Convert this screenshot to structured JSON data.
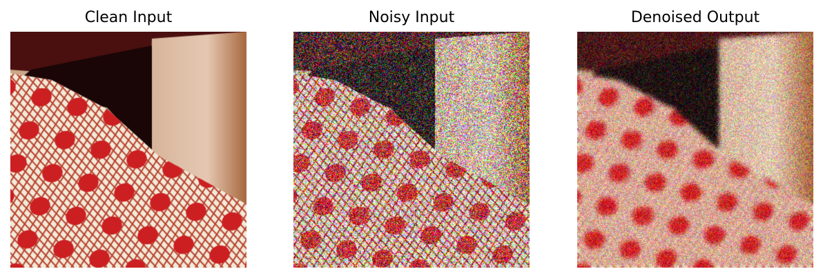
{
  "figure": {
    "panels": [
      {
        "title": "Clean Input",
        "variant": "clean"
      },
      {
        "title": "Noisy Input",
        "variant": "noisy"
      },
      {
        "title": "Denoised Output",
        "variant": "denoised"
      }
    ]
  },
  "colors": {
    "background": "#ffffff",
    "title_text": "#000000",
    "fabric_light": "#f2ead8",
    "fabric_dot": "#cc1f22",
    "fabric_thread": "#b8402e",
    "fabric_green": "#5a7a5a",
    "shadow": "#1a0606",
    "wall_tan": "#c9a888",
    "upper_dark_red": "#4a1010"
  }
}
